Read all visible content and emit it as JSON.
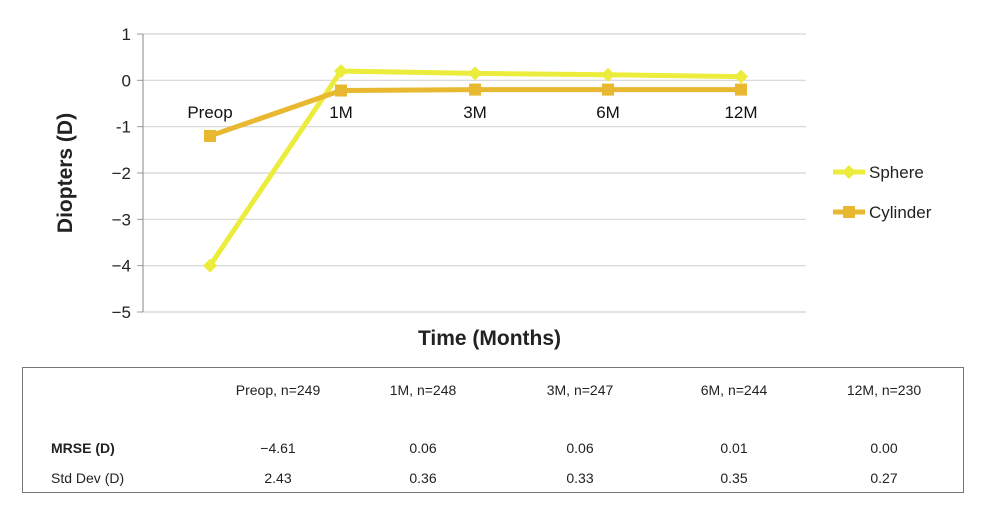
{
  "chart_data": {
    "type": "line",
    "categories": [
      "Preop",
      "1M",
      "3M",
      "6M",
      "12M"
    ],
    "series": [
      {
        "name": "Sphere",
        "values": [
          -4.0,
          0.2,
          0.15,
          0.12,
          0.08
        ],
        "color": "#ECEC3C",
        "marker": "diamond"
      },
      {
        "name": "Cylinder",
        "values": [
          -1.2,
          -0.22,
          -0.2,
          -0.2,
          -0.2
        ],
        "color": "#E8B830",
        "marker": "square"
      }
    ],
    "ylabel": "Diopters (D)",
    "xlabel": "Time (Months)",
    "ylim": [
      -5,
      1
    ],
    "yticks": [
      "1",
      "0",
      "-1",
      "−2",
      "−3",
      "−4",
      "−5"
    ],
    "grid": true,
    "legend_position": "right"
  },
  "table": {
    "columns": [
      "Preop, n=249",
      "1M, n=248",
      "3M, n=247",
      "6M, n=244",
      "12M, n=230"
    ],
    "rows": [
      {
        "label": "MRSE (D)",
        "values": [
          "−4.61",
          "0.06",
          "0.06",
          "0.01",
          "0.00"
        ]
      },
      {
        "label": "Std Dev (D)",
        "values": [
          "2.43",
          "0.36",
          "0.33",
          "0.35",
          "0.27"
        ]
      }
    ]
  }
}
